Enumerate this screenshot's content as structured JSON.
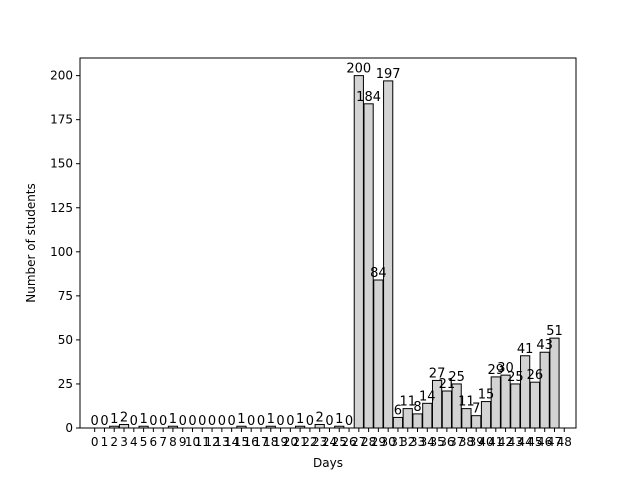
{
  "chart_data": {
    "type": "bar",
    "xlabel": "Days",
    "ylabel": "Number of students",
    "categories": [
      "0",
      "1",
      "2",
      "3",
      "4",
      "5",
      "6",
      "7",
      "8",
      "9",
      "10",
      "11",
      "12",
      "13",
      "14",
      "15",
      "16",
      "17",
      "18",
      "19",
      "20",
      "21",
      "22",
      "23",
      "24",
      "25",
      "26",
      "27",
      "28",
      "29",
      "30",
      "31",
      "32",
      "33",
      "34",
      "35",
      "36",
      "37",
      "38",
      "39",
      "40",
      "41",
      "42",
      "43",
      "44",
      "45",
      "46",
      "47",
      "48"
    ],
    "values": [
      0,
      0,
      1,
      2,
      0,
      1,
      0,
      0,
      1,
      0,
      0,
      0,
      0,
      0,
      0,
      1,
      0,
      0,
      1,
      0,
      0,
      1,
      0,
      2,
      0,
      1,
      0,
      200,
      184,
      84,
      197,
      6,
      11,
      8,
      14,
      27,
      21,
      25,
      11,
      7,
      15,
      29,
      30,
      25,
      41,
      26,
      43,
      51,
      null
    ],
    "value_labels": [
      "0",
      "0",
      "1",
      "2",
      "0",
      "1",
      "0",
      "0",
      "1",
      "0",
      "0",
      "0",
      "0",
      "0",
      "0",
      "1",
      "0",
      "0",
      "1",
      "0",
      "0",
      "1",
      "0",
      "2",
      "0",
      "1",
      "0",
      "200",
      "184",
      "84",
      "197",
      "6",
      "11",
      "8",
      "14",
      "27",
      "21",
      "25",
      "11",
      "7",
      "15",
      "29",
      "30",
      "25",
      "41",
      "26",
      "43",
      "51",
      ""
    ],
    "ylim": [
      0,
      210
    ],
    "yticks": [
      0,
      25,
      50,
      75,
      100,
      125,
      150,
      175,
      200
    ],
    "xlim": [
      -1.5,
      49.2
    ],
    "grid": false,
    "bar_color": "#d3d3d3",
    "edge_color": "#000000"
  }
}
